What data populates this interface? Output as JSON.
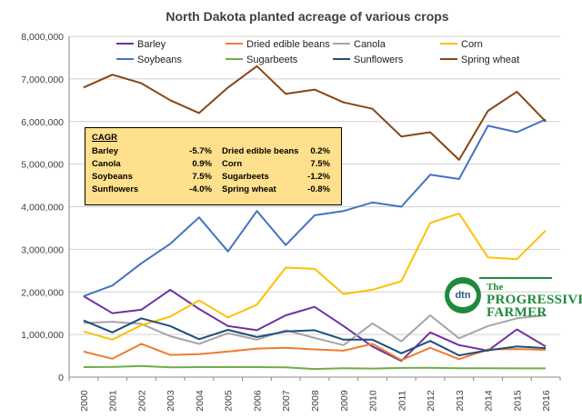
{
  "chart_data": {
    "type": "line",
    "title": "North Dakota planted acreage of various crops",
    "xlabel": "",
    "ylabel": "",
    "ylim": [
      0,
      8000000
    ],
    "y_ticks": [
      "0",
      "1,000,000",
      "2,000,000",
      "3,000,000",
      "4,000,000",
      "5,000,000",
      "6,000,000",
      "7,000,000",
      "8,000,000"
    ],
    "categories": [
      "2000",
      "2001",
      "2002",
      "2003",
      "2004",
      "2005",
      "2006",
      "2007",
      "2008",
      "2009",
      "2010",
      "2011",
      "2012",
      "2013",
      "2014",
      "2015",
      "2016"
    ],
    "grid": true,
    "legend_position": "top",
    "series": [
      {
        "name": "Barley",
        "color": "#7030a0",
        "values": [
          1900000,
          1500000,
          1580000,
          2050000,
          1600000,
          1200000,
          1100000,
          1450000,
          1650000,
          1200000,
          720000,
          380000,
          1050000,
          750000,
          620000,
          1120000,
          720000
        ]
      },
      {
        "name": "Dried edible beans",
        "color": "#ed7d31",
        "values": [
          600000,
          430000,
          780000,
          520000,
          540000,
          600000,
          670000,
          690000,
          650000,
          620000,
          780000,
          400000,
          690000,
          420000,
          650000,
          660000,
          640000
        ]
      },
      {
        "name": "Canola",
        "color": "#a5a5a5",
        "values": [
          1270000,
          1300000,
          1250000,
          960000,
          780000,
          1030000,
          880000,
          1100000,
          920000,
          750000,
          1260000,
          840000,
          1450000,
          910000,
          1200000,
          1380000,
          1450000
        ]
      },
      {
        "name": "Corn",
        "color": "#ffc000",
        "values": [
          1070000,
          880000,
          1220000,
          1420000,
          1800000,
          1400000,
          1700000,
          2570000,
          2540000,
          1950000,
          2050000,
          2250000,
          3620000,
          3840000,
          2810000,
          2770000,
          3440000
        ]
      },
      {
        "name": "Soybeans",
        "color": "#4472c4",
        "values": [
          1900000,
          2150000,
          2670000,
          3130000,
          3750000,
          2950000,
          3900000,
          3100000,
          3800000,
          3900000,
          4100000,
          4000000,
          4750000,
          4650000,
          5900000,
          5750000,
          6050000
        ]
      },
      {
        "name": "Sugarbeets",
        "color": "#70ad47",
        "values": [
          235000,
          240000,
          260000,
          230000,
          235000,
          235000,
          235000,
          230000,
          190000,
          210000,
          200000,
          215000,
          220000,
          210000,
          210000,
          205000,
          205000
        ]
      },
      {
        "name": "Sunflowers",
        "color": "#1f4e79",
        "values": [
          1330000,
          1050000,
          1380000,
          1200000,
          890000,
          1110000,
          940000,
          1070000,
          1100000,
          880000,
          880000,
          560000,
          850000,
          510000,
          630000,
          720000,
          680000
        ]
      },
      {
        "name": "Spring wheat",
        "color": "#8b4513",
        "values": [
          6800000,
          7100000,
          6900000,
          6500000,
          6200000,
          6800000,
          7300000,
          6650000,
          6750000,
          6450000,
          6300000,
          5650000,
          5750000,
          5100000,
          6250000,
          6700000,
          6000000
        ]
      }
    ]
  },
  "cagr": {
    "title": "CAGR",
    "rows": [
      {
        "name1": "Barley",
        "val1": "-5.7%",
        "name2": "Dried edible beans",
        "val2": "0.2%"
      },
      {
        "name1": "Canola",
        "val1": "0.9%",
        "name2": "Corn",
        "val2": "7.5%"
      },
      {
        "name1": "Soybeans",
        "val1": "7.5%",
        "name2": "Sugarbeets",
        "val2": "-1.2%"
      },
      {
        "name1": "Sunflowers",
        "val1": "-4.0%",
        "name2": "Spring wheat",
        "val2": "-0.8%"
      }
    ]
  },
  "logo": {
    "mark": "dtn",
    "line1": "The",
    "line2": "PROGRESSIVE",
    "line3": "FARMER"
  }
}
